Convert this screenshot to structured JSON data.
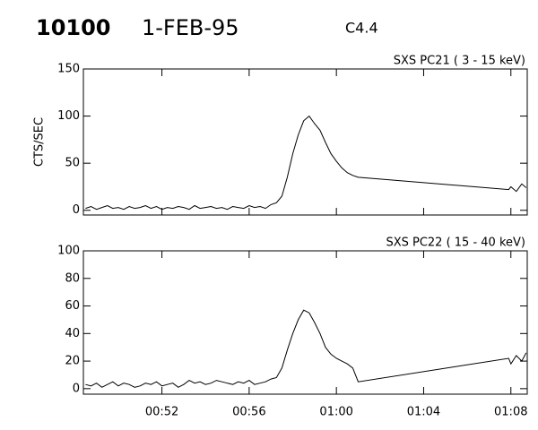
{
  "header": {
    "id": "10100",
    "date": "1-FEB-95",
    "class": "C4.4"
  },
  "chart_data": [
    {
      "type": "line",
      "title": "SXS PC21  (  3 - 15 keV)",
      "y_label": "CTS/SEC",
      "x": [
        48.5,
        48.75,
        49.0,
        49.25,
        49.5,
        49.75,
        50.0,
        50.25,
        50.5,
        50.75,
        51.0,
        51.25,
        51.5,
        51.75,
        52.0,
        52.25,
        52.5,
        52.75,
        53.0,
        53.25,
        53.5,
        53.75,
        54.0,
        54.25,
        54.5,
        54.75,
        55.0,
        55.25,
        55.5,
        55.75,
        56.0,
        56.25,
        56.5,
        56.75,
        57.0,
        57.25,
        57.5,
        57.75,
        58.0,
        58.25,
        58.5,
        58.75,
        59.0,
        59.25,
        59.5,
        59.75,
        60.0,
        60.25,
        60.5,
        60.75,
        61.0,
        67.9,
        68.0,
        68.25,
        68.5,
        68.7
      ],
      "series": [
        {
          "color": "#000000",
          "values": [
            2,
            4,
            1,
            3,
            5,
            2,
            3,
            1,
            4,
            2,
            3,
            5,
            2,
            4,
            1,
            3,
            2,
            4,
            3,
            1,
            5,
            2,
            3,
            4,
            2,
            3,
            1,
            4,
            3,
            2,
            5,
            3,
            4,
            2,
            6,
            8,
            15,
            35,
            60,
            80,
            95,
            100,
            92,
            85,
            72,
            60,
            52,
            45,
            40,
            37,
            35,
            22,
            25,
            20,
            28,
            24
          ]
        }
      ],
      "xlim": [
        48.4,
        68.75
      ],
      "ylim": [
        -5,
        150
      ],
      "yticks": [
        0,
        50,
        100,
        150
      ]
    },
    {
      "type": "line",
      "title": "SXS PC22  ( 15 - 40 keV)",
      "x": [
        48.5,
        48.75,
        49.0,
        49.25,
        49.5,
        49.75,
        50.0,
        50.25,
        50.5,
        50.75,
        51.0,
        51.25,
        51.5,
        51.75,
        52.0,
        52.25,
        52.5,
        52.75,
        53.0,
        53.25,
        53.5,
        53.75,
        54.0,
        54.25,
        54.5,
        54.75,
        55.0,
        55.25,
        55.5,
        55.75,
        56.0,
        56.25,
        56.5,
        56.75,
        57.0,
        57.25,
        57.5,
        57.75,
        58.0,
        58.25,
        58.5,
        58.75,
        59.0,
        59.25,
        59.5,
        59.75,
        60.0,
        60.25,
        60.5,
        60.75,
        61.0,
        67.9,
        68.0,
        68.25,
        68.5,
        68.7
      ],
      "series": [
        {
          "color": "#000000",
          "values": [
            3,
            2,
            4,
            1,
            3,
            5,
            2,
            4,
            3,
            1,
            2,
            4,
            3,
            5,
            2,
            3,
            4,
            1,
            3,
            6,
            4,
            5,
            3,
            4,
            6,
            5,
            4,
            3,
            5,
            4,
            6,
            3,
            4,
            5,
            7,
            8,
            15,
            28,
            40,
            50,
            57,
            55,
            48,
            40,
            30,
            25,
            22,
            20,
            18,
            15,
            5,
            22,
            18,
            24,
            20,
            26
          ]
        }
      ],
      "xlim": [
        48.4,
        68.75
      ],
      "ylim": [
        -4,
        100
      ],
      "yticks": [
        0,
        20,
        40,
        60,
        80,
        100
      ],
      "xticks": [
        {
          "value": 52,
          "label": "00:52"
        },
        {
          "value": 56,
          "label": "00:56"
        },
        {
          "value": 60,
          "label": "01:00"
        },
        {
          "value": 64,
          "label": "01:04"
        },
        {
          "value": 68,
          "label": "01:08"
        }
      ]
    }
  ]
}
